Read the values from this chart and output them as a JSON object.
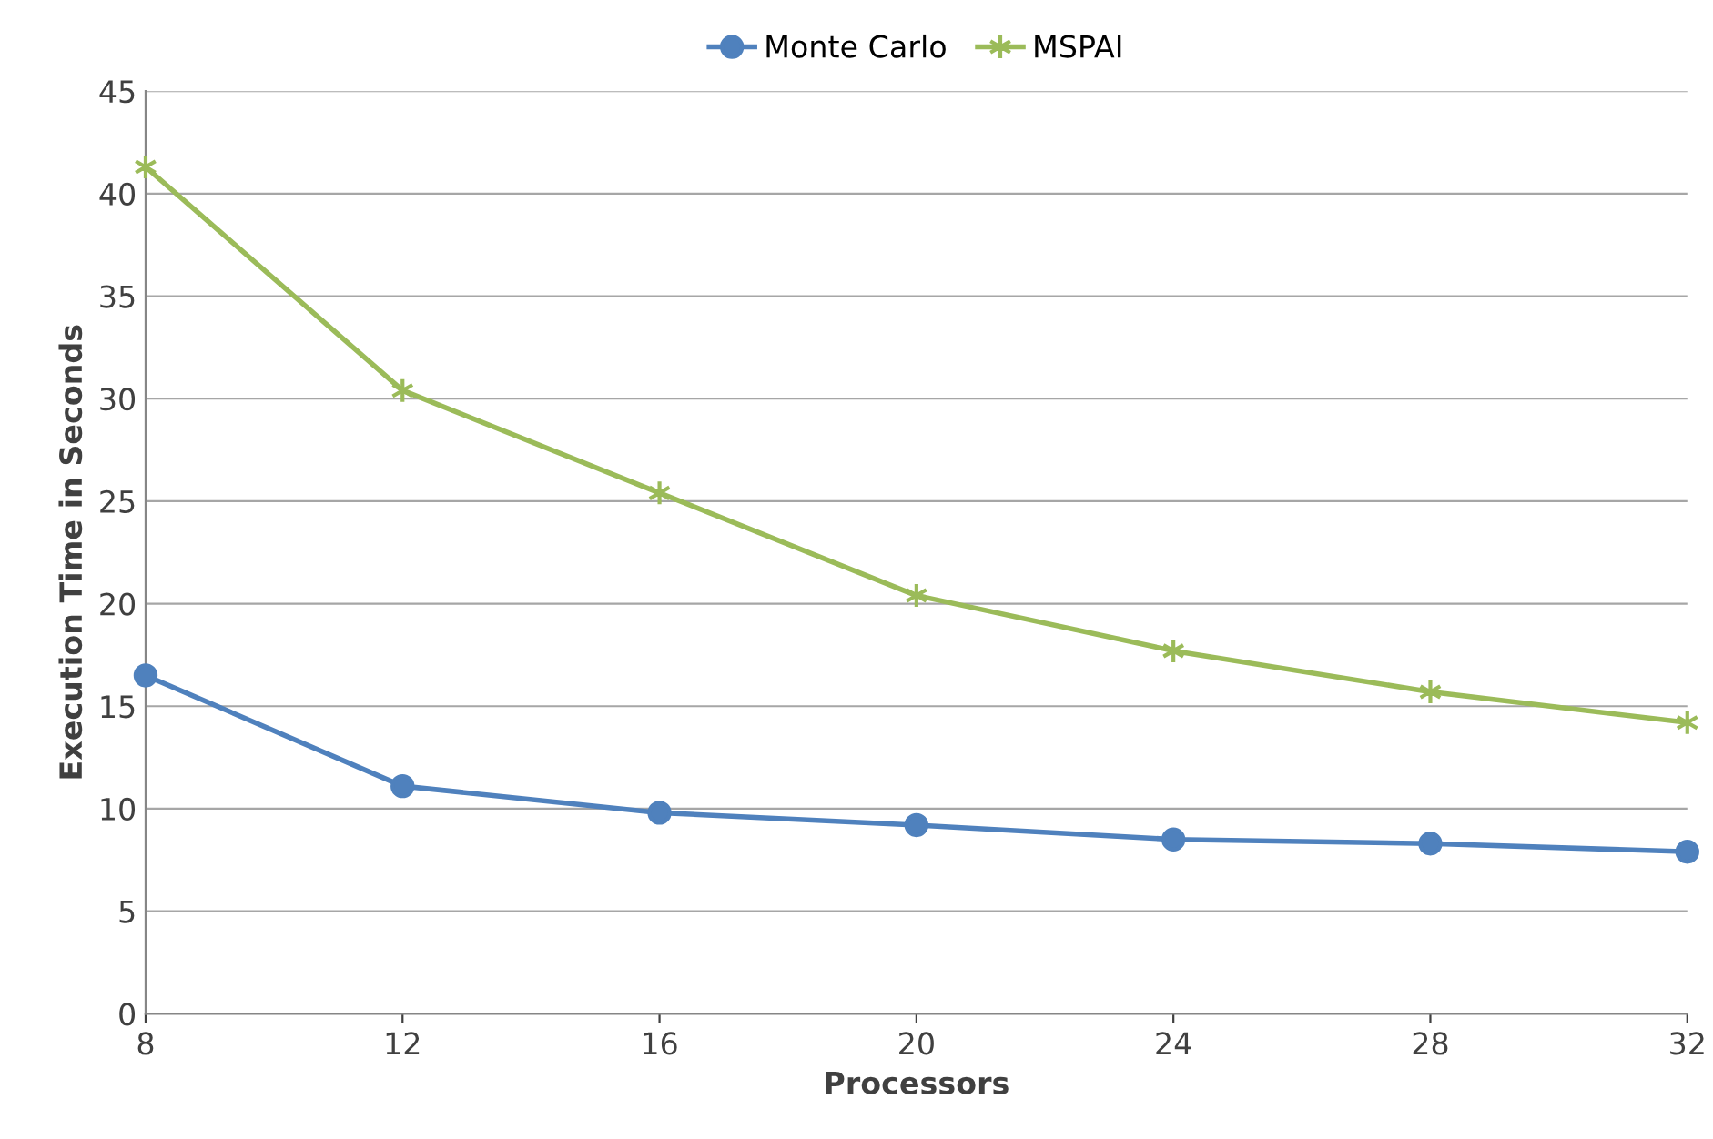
{
  "chart_data": {
    "type": "line",
    "xlabel": "Processors",
    "ylabel": "Execution Time in Seconds",
    "x": [
      8,
      12,
      16,
      20,
      24,
      28,
      32
    ],
    "series": [
      {
        "name": "Monte Carlo",
        "color": "#4f81bd",
        "marker": "circle",
        "values": [
          16.5,
          11.1,
          9.8,
          9.2,
          8.5,
          8.3,
          7.9
        ]
      },
      {
        "name": "MSPAI",
        "color": "#9bbb59",
        "marker": "cross",
        "values": [
          41.3,
          30.4,
          25.4,
          20.4,
          17.7,
          15.7,
          14.2
        ]
      }
    ],
    "xlim": [
      8,
      32
    ],
    "xticks": [
      8,
      12,
      16,
      20,
      24,
      28,
      32
    ],
    "ylim": [
      0,
      45
    ],
    "yticks": [
      0,
      5,
      10,
      15,
      20,
      25,
      30,
      35,
      40,
      45
    ],
    "grid": "y",
    "legend": "top",
    "line_style": "solid"
  }
}
